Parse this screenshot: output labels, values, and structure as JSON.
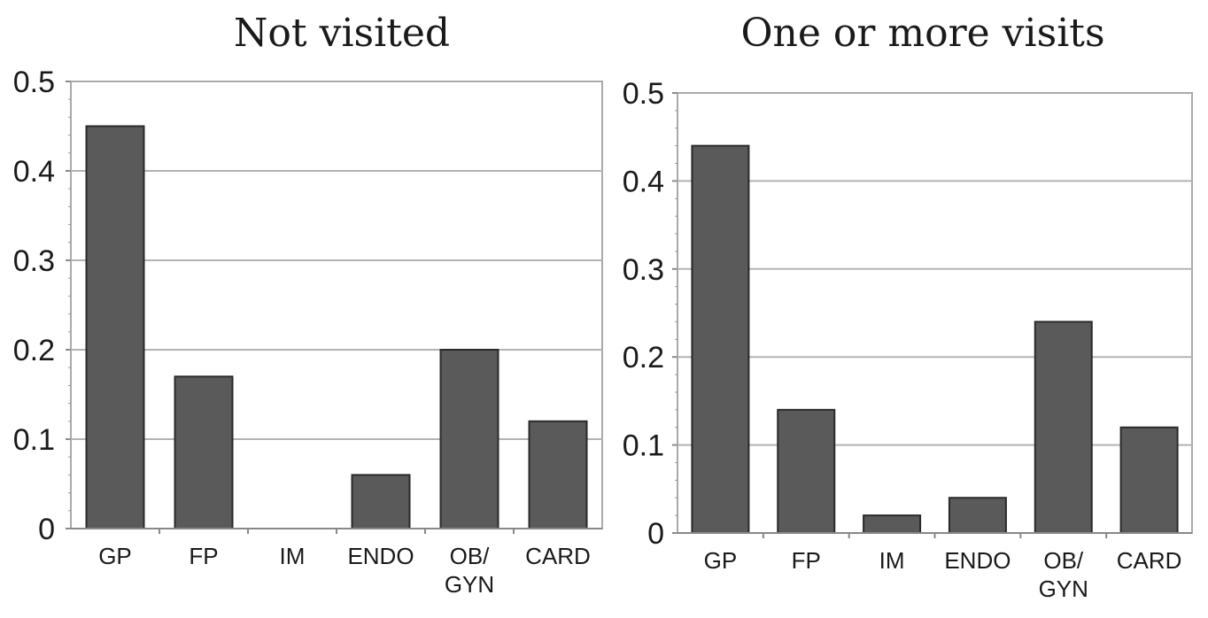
{
  "chart_data": [
    {
      "type": "bar",
      "title": "Not visited",
      "categories": [
        {
          "line1": "GP",
          "line2": ""
        },
        {
          "line1": "FP",
          "line2": ""
        },
        {
          "line1": "IM",
          "line2": ""
        },
        {
          "line1": "ENDO",
          "line2": ""
        },
        {
          "line1": "OB/",
          "line2": "GYN"
        },
        {
          "line1": "CARD",
          "line2": ""
        }
      ],
      "values": [
        0.45,
        0.17,
        0.0,
        0.06,
        0.2,
        0.12
      ],
      "yticks": [
        "0",
        "0.1",
        "0.2",
        "0.3",
        "0.4",
        "0.5"
      ],
      "ylim": [
        0,
        0.5
      ],
      "xlabel": "",
      "ylabel": "",
      "grid": true,
      "bar_color": "#5a5a5a"
    },
    {
      "type": "bar",
      "title": "One or more visits",
      "categories": [
        {
          "line1": "GP",
          "line2": ""
        },
        {
          "line1": "FP",
          "line2": ""
        },
        {
          "line1": "IM",
          "line2": ""
        },
        {
          "line1": "ENDO",
          "line2": ""
        },
        {
          "line1": "OB/",
          "line2": "GYN"
        },
        {
          "line1": "CARD",
          "line2": ""
        }
      ],
      "values": [
        0.44,
        0.14,
        0.02,
        0.04,
        0.24,
        0.12
      ],
      "yticks": [
        "0",
        "0.1",
        "0.2",
        "0.3",
        "0.4",
        "0.5"
      ],
      "ylim": [
        0,
        0.5
      ],
      "xlabel": "",
      "ylabel": "",
      "grid": true,
      "bar_color": "#5a5a5a"
    }
  ]
}
